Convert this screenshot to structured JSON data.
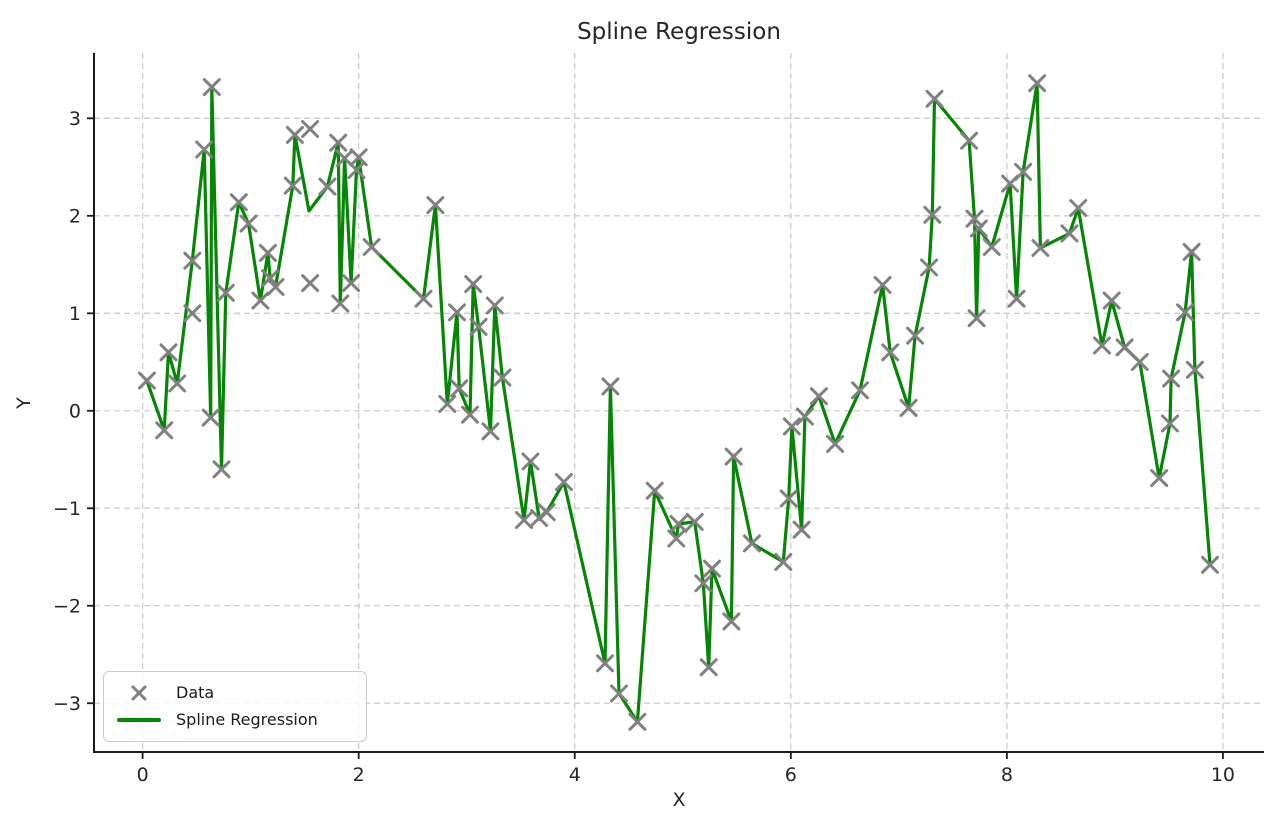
{
  "chart_data": {
    "type": "line+scatter",
    "title": "Spline Regression",
    "xlabel": "X",
    "ylabel": "Y",
    "xlim": [
      -0.45,
      10.38
    ],
    "ylim": [
      -3.5,
      3.67
    ],
    "xticks": [
      0,
      2,
      4,
      6,
      8,
      10
    ],
    "yticks": [
      -3,
      -2,
      -1,
      0,
      1,
      2,
      3
    ],
    "grid": true,
    "grid_style": "dashed",
    "legend_position": "lower left",
    "colors": {
      "line": "#078507",
      "marker": "#808080",
      "grid": "#cccccc",
      "spine": "#1a1a1a",
      "text": "#262626",
      "background": "#ffffff"
    },
    "legend": {
      "items": [
        {
          "label": "Data",
          "type": "scatter-x"
        },
        {
          "label": "Spline Regression",
          "type": "line"
        }
      ]
    },
    "series": [
      {
        "name": "Data",
        "type": "scatter",
        "marker": "x",
        "points": [
          [
            0.04,
            0.31
          ],
          [
            0.2,
            -0.2
          ],
          [
            0.24,
            0.6
          ],
          [
            0.32,
            0.28
          ],
          [
            0.46,
            1.54
          ],
          [
            0.46,
            1.0
          ],
          [
            0.57,
            2.68
          ],
          [
            0.63,
            -0.07
          ],
          [
            0.64,
            3.32
          ],
          [
            0.73,
            -0.6
          ],
          [
            0.77,
            1.21
          ],
          [
            0.89,
            2.14
          ],
          [
            0.98,
            1.92
          ],
          [
            1.09,
            1.13
          ],
          [
            1.16,
            1.62
          ],
          [
            1.18,
            1.36
          ],
          [
            1.23,
            1.27
          ],
          [
            1.39,
            2.31
          ],
          [
            1.41,
            2.83
          ],
          [
            1.55,
            2.89
          ],
          [
            1.55,
            1.31
          ],
          [
            1.71,
            2.3
          ],
          [
            1.81,
            2.75
          ],
          [
            1.83,
            1.1
          ],
          [
            1.87,
            2.59
          ],
          [
            1.93,
            1.31
          ],
          [
            1.98,
            2.47
          ],
          [
            2.0,
            2.6
          ],
          [
            2.12,
            1.68
          ],
          [
            2.6,
            1.15
          ],
          [
            2.71,
            2.11
          ],
          [
            2.82,
            0.07
          ],
          [
            2.91,
            1.01
          ],
          [
            2.93,
            0.23
          ],
          [
            3.03,
            -0.04
          ],
          [
            3.06,
            1.3
          ],
          [
            3.11,
            0.86
          ],
          [
            3.22,
            -0.21
          ],
          [
            3.26,
            1.08
          ],
          [
            3.33,
            0.34
          ],
          [
            3.53,
            -1.12
          ],
          [
            3.59,
            -0.52
          ],
          [
            3.67,
            -1.1
          ],
          [
            3.74,
            -1.04
          ],
          [
            3.9,
            -0.73
          ],
          [
            4.28,
            -2.59
          ],
          [
            4.33,
            0.25
          ],
          [
            4.41,
            -2.9
          ],
          [
            4.58,
            -3.19
          ],
          [
            4.74,
            -0.82
          ],
          [
            4.94,
            -1.31
          ],
          [
            4.96,
            -1.16
          ],
          [
            5.11,
            -1.14
          ],
          [
            5.19,
            -1.77
          ],
          [
            5.24,
            -2.63
          ],
          [
            5.27,
            -1.62
          ],
          [
            5.45,
            -2.16
          ],
          [
            5.47,
            -0.47
          ],
          [
            5.64,
            -1.36
          ],
          [
            5.93,
            -1.55
          ],
          [
            5.98,
            -0.9
          ],
          [
            6.01,
            -0.16
          ],
          [
            6.1,
            -1.22
          ],
          [
            6.13,
            -0.06
          ],
          [
            6.26,
            0.15
          ],
          [
            6.41,
            -0.34
          ],
          [
            6.64,
            0.21
          ],
          [
            6.85,
            1.29
          ],
          [
            6.92,
            0.6
          ],
          [
            7.09,
            0.03
          ],
          [
            7.15,
            0.77
          ],
          [
            7.28,
            1.47
          ],
          [
            7.31,
            2.01
          ],
          [
            7.33,
            3.2
          ],
          [
            7.65,
            2.77
          ],
          [
            7.7,
            1.97
          ],
          [
            7.72,
            0.95
          ],
          [
            7.74,
            1.87
          ],
          [
            7.86,
            1.68
          ],
          [
            8.03,
            2.33
          ],
          [
            8.09,
            1.15
          ],
          [
            8.15,
            2.45
          ],
          [
            8.28,
            3.36
          ],
          [
            8.31,
            1.67
          ],
          [
            8.58,
            1.82
          ],
          [
            8.66,
            2.08
          ],
          [
            8.88,
            0.67
          ],
          [
            8.97,
            1.13
          ],
          [
            9.09,
            0.65
          ],
          [
            9.23,
            0.5
          ],
          [
            9.41,
            -0.69
          ],
          [
            9.51,
            -0.13
          ],
          [
            9.52,
            0.33
          ],
          [
            9.65,
            1.01
          ],
          [
            9.71,
            1.63
          ],
          [
            9.74,
            0.42
          ],
          [
            9.88,
            -1.58
          ]
        ]
      },
      {
        "name": "Spline Regression",
        "type": "line",
        "points": [
          [
            0.04,
            0.31
          ],
          [
            0.2,
            -0.2
          ],
          [
            0.24,
            0.6
          ],
          [
            0.32,
            0.28
          ],
          [
            0.46,
            1.54
          ],
          [
            0.57,
            2.68
          ],
          [
            0.63,
            -0.07
          ],
          [
            0.64,
            3.32
          ],
          [
            0.73,
            -0.6
          ],
          [
            0.77,
            1.21
          ],
          [
            0.89,
            2.14
          ],
          [
            0.98,
            1.92
          ],
          [
            1.09,
            1.13
          ],
          [
            1.16,
            1.62
          ],
          [
            1.18,
            1.36
          ],
          [
            1.23,
            1.27
          ],
          [
            1.39,
            2.31
          ],
          [
            1.41,
            2.83
          ],
          [
            1.54,
            2.05
          ],
          [
            1.71,
            2.3
          ],
          [
            1.81,
            2.75
          ],
          [
            1.83,
            1.1
          ],
          [
            1.87,
            2.59
          ],
          [
            1.93,
            1.31
          ],
          [
            1.98,
            2.47
          ],
          [
            2.0,
            2.6
          ],
          [
            2.12,
            1.68
          ],
          [
            2.6,
            1.15
          ],
          [
            2.71,
            2.11
          ],
          [
            2.82,
            0.07
          ],
          [
            2.91,
            1.01
          ],
          [
            2.93,
            0.23
          ],
          [
            3.03,
            -0.04
          ],
          [
            3.06,
            1.3
          ],
          [
            3.11,
            0.86
          ],
          [
            3.22,
            -0.21
          ],
          [
            3.26,
            1.08
          ],
          [
            3.33,
            0.34
          ],
          [
            3.53,
            -1.12
          ],
          [
            3.59,
            -0.52
          ],
          [
            3.67,
            -1.1
          ],
          [
            3.74,
            -1.04
          ],
          [
            3.9,
            -0.73
          ],
          [
            4.28,
            -2.59
          ],
          [
            4.33,
            0.25
          ],
          [
            4.41,
            -2.9
          ],
          [
            4.58,
            -3.19
          ],
          [
            4.74,
            -0.82
          ],
          [
            4.94,
            -1.31
          ],
          [
            4.96,
            -1.16
          ],
          [
            5.11,
            -1.14
          ],
          [
            5.19,
            -1.77
          ],
          [
            5.24,
            -2.63
          ],
          [
            5.27,
            -1.62
          ],
          [
            5.45,
            -2.16
          ],
          [
            5.47,
            -0.47
          ],
          [
            5.64,
            -1.36
          ],
          [
            5.93,
            -1.55
          ],
          [
            5.98,
            -0.9
          ],
          [
            6.01,
            -0.16
          ],
          [
            6.1,
            -1.22
          ],
          [
            6.13,
            -0.06
          ],
          [
            6.26,
            0.15
          ],
          [
            6.41,
            -0.34
          ],
          [
            6.64,
            0.21
          ],
          [
            6.85,
            1.29
          ],
          [
            6.92,
            0.6
          ],
          [
            7.09,
            0.03
          ],
          [
            7.15,
            0.77
          ],
          [
            7.28,
            1.47
          ],
          [
            7.31,
            2.01
          ],
          [
            7.33,
            3.2
          ],
          [
            7.65,
            2.77
          ],
          [
            7.7,
            1.97
          ],
          [
            7.72,
            0.95
          ],
          [
            7.74,
            1.87
          ],
          [
            7.86,
            1.68
          ],
          [
            8.03,
            2.33
          ],
          [
            8.09,
            1.15
          ],
          [
            8.15,
            2.45
          ],
          [
            8.28,
            3.36
          ],
          [
            8.31,
            1.67
          ],
          [
            8.58,
            1.82
          ],
          [
            8.66,
            2.08
          ],
          [
            8.88,
            0.67
          ],
          [
            8.97,
            1.13
          ],
          [
            9.09,
            0.65
          ],
          [
            9.23,
            0.5
          ],
          [
            9.41,
            -0.69
          ],
          [
            9.51,
            -0.13
          ],
          [
            9.52,
            0.33
          ],
          [
            9.65,
            1.01
          ],
          [
            9.71,
            1.63
          ],
          [
            9.74,
            0.42
          ],
          [
            9.88,
            -1.58
          ]
        ]
      }
    ]
  }
}
